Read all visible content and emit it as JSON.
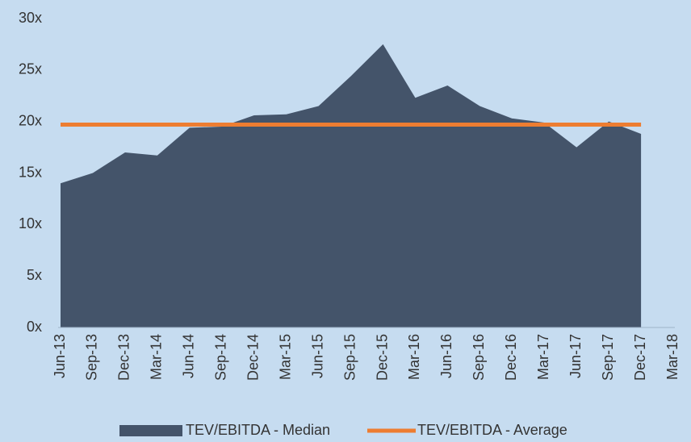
{
  "chart_data": {
    "type": "area",
    "categories": [
      "Jun-13",
      "Sep-13",
      "Dec-13",
      "Mar-14",
      "Jun-14",
      "Sep-14",
      "Dec-14",
      "Mar-15",
      "Jun-15",
      "Sep-15",
      "Dec-15",
      "Mar-16",
      "Jun-16",
      "Sep-16",
      "Dec-16",
      "Mar-17",
      "Jun-17",
      "Sep-17",
      "Dec-17",
      "Mar-18"
    ],
    "series": [
      {
        "name": "TEV/EBITDA - Median",
        "color": "#44546a",
        "type": "area",
        "values": [
          14.0,
          15.0,
          17.0,
          16.7,
          19.4,
          19.5,
          20.6,
          20.7,
          21.5,
          24.4,
          27.5,
          22.3,
          23.5,
          21.5,
          20.3,
          19.9,
          17.5,
          20.0,
          18.8,
          null
        ]
      },
      {
        "name": "TEV/EBITDA - Average",
        "color": "#ed7d31",
        "type": "line",
        "values": [
          19.7,
          19.7,
          19.7,
          19.7,
          19.7,
          19.7,
          19.7,
          19.7,
          19.7,
          19.7,
          19.7,
          19.7,
          19.7,
          19.7,
          19.7,
          19.7,
          19.7,
          19.7,
          19.7,
          null
        ]
      }
    ],
    "ylim": [
      0,
      30
    ],
    "yticks": [
      {
        "value": 0,
        "label": "0x"
      },
      {
        "value": 5,
        "label": "5x"
      },
      {
        "value": 10,
        "label": "10x"
      },
      {
        "value": 15,
        "label": "15x"
      },
      {
        "value": 20,
        "label": "20x"
      },
      {
        "value": 25,
        "label": "25x"
      },
      {
        "value": 30,
        "label": "30x"
      }
    ],
    "legend": "bottom"
  }
}
